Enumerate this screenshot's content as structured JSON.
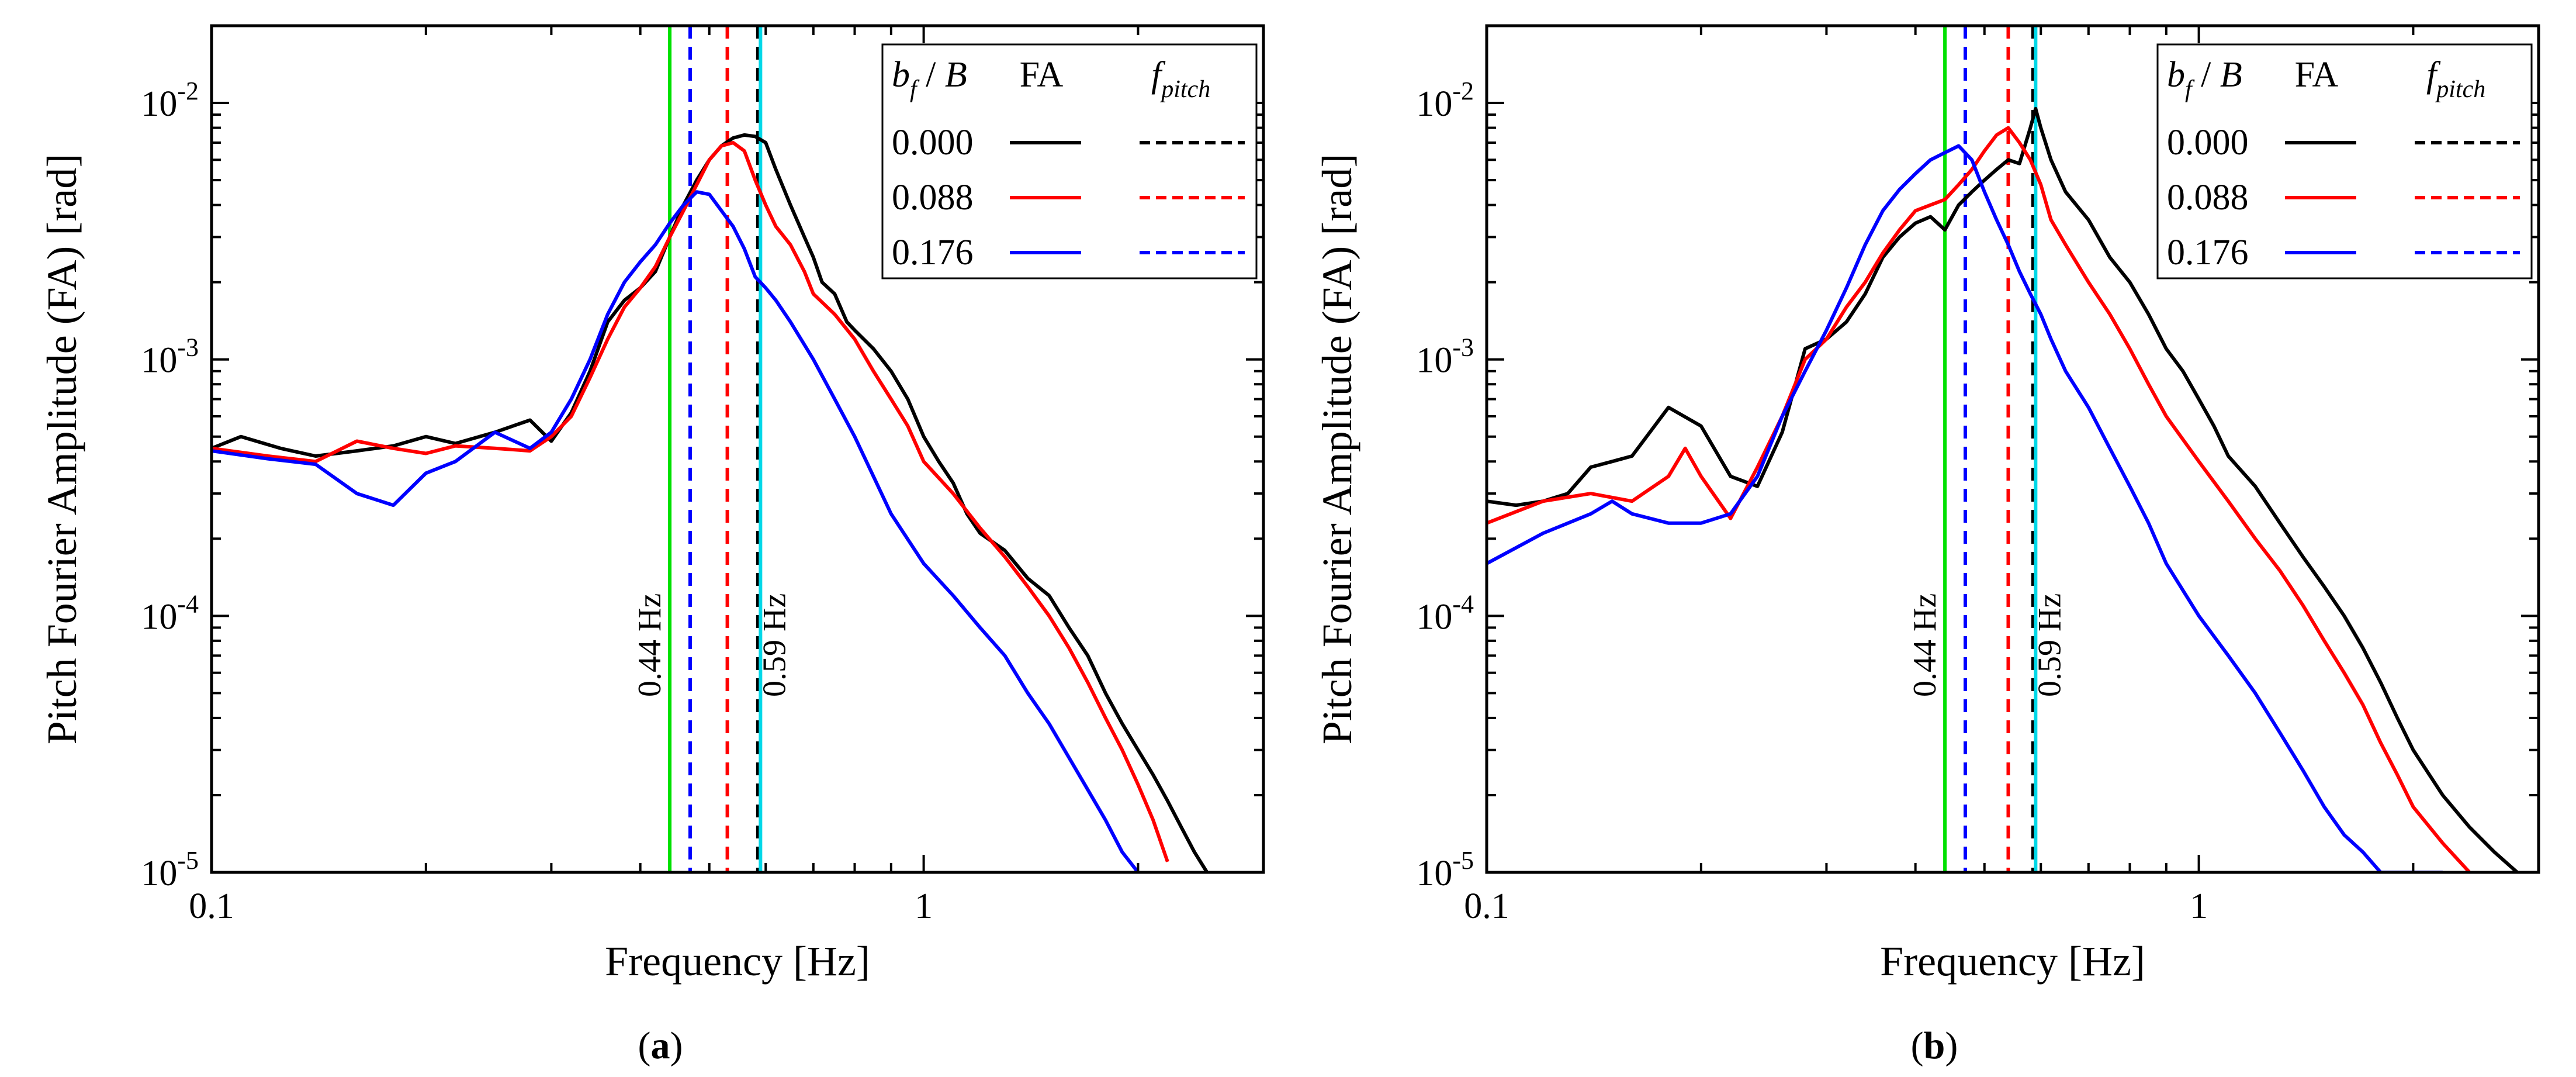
{
  "colors": {
    "black": "#000000",
    "red": "#ff0000",
    "blue": "#0000ff",
    "green": "#00e000",
    "cyan": "#00d8e8"
  },
  "chart_data": [
    {
      "type": "line",
      "panel": "a",
      "caption": "(a)",
      "xlabel": "Frequency [Hz]",
      "ylabel": "Pitch Fourier Amplitude (FA) [rad]",
      "xscale": "log",
      "yscale": "log",
      "xlim": [
        0.1,
        3.0
      ],
      "ylim": [
        1e-05,
        0.02
      ],
      "xticks": [
        "0.1",
        "1"
      ],
      "yticks": [
        "10-5",
        "10-4",
        "10-3",
        "10-2"
      ],
      "legend_placement": "top-right",
      "legend_headers": [
        "bf / B",
        "FA",
        "fpitch"
      ],
      "vlines": [
        {
          "x": 0.44,
          "color": "green",
          "style": "solid",
          "label": "0.44 Hz"
        },
        {
          "x": 0.47,
          "color": "blue",
          "style": "dashed"
        },
        {
          "x": 0.53,
          "color": "red",
          "style": "dashed"
        },
        {
          "x": 0.585,
          "color": "black",
          "style": "dashed"
        },
        {
          "x": 0.59,
          "color": "cyan",
          "style": "solid",
          "label": "0.59 Hz"
        }
      ],
      "series": [
        {
          "name": "0.000",
          "color": "black",
          "x": [
            0.1,
            0.11,
            0.125,
            0.14,
            0.16,
            0.18,
            0.2,
            0.22,
            0.25,
            0.28,
            0.3,
            0.32,
            0.34,
            0.36,
            0.38,
            0.4,
            0.42,
            0.44,
            0.46,
            0.48,
            0.5,
            0.52,
            0.54,
            0.56,
            0.58,
            0.6,
            0.62,
            0.65,
            0.68,
            0.7,
            0.72,
            0.75,
            0.78,
            0.8,
            0.85,
            0.9,
            0.95,
            1.0,
            1.05,
            1.1,
            1.15,
            1.2,
            1.3,
            1.4,
            1.5,
            1.6,
            1.7,
            1.8,
            1.9,
            2.0,
            2.1,
            2.2,
            2.3,
            2.4,
            2.5
          ],
          "y": [
            0.00045,
            0.0005,
            0.00045,
            0.00042,
            0.00044,
            0.00046,
            0.0005,
            0.00047,
            0.00052,
            0.00058,
            0.00048,
            0.00062,
            0.0009,
            0.0014,
            0.0017,
            0.0019,
            0.0022,
            0.003,
            0.004,
            0.005,
            0.006,
            0.0068,
            0.0073,
            0.0075,
            0.0074,
            0.007,
            0.0055,
            0.004,
            0.003,
            0.0025,
            0.002,
            0.0018,
            0.0014,
            0.0013,
            0.0011,
            0.0009,
            0.0007,
            0.0005,
            0.0004,
            0.00033,
            0.00025,
            0.00021,
            0.00018,
            0.00014,
            0.00012,
            9e-05,
            7e-05,
            5e-05,
            3.8e-05,
            3e-05,
            2.4e-05,
            1.9e-05,
            1.5e-05,
            1.2e-05,
            1e-05
          ]
        },
        {
          "name": "0.088",
          "color": "red",
          "x": [
            0.1,
            0.12,
            0.14,
            0.16,
            0.18,
            0.2,
            0.22,
            0.25,
            0.28,
            0.3,
            0.32,
            0.34,
            0.36,
            0.38,
            0.4,
            0.42,
            0.44,
            0.46,
            0.48,
            0.5,
            0.52,
            0.54,
            0.56,
            0.58,
            0.6,
            0.62,
            0.65,
            0.68,
            0.7,
            0.75,
            0.8,
            0.85,
            0.9,
            0.95,
            1.0,
            1.1,
            1.2,
            1.3,
            1.4,
            1.5,
            1.6,
            1.7,
            1.8,
            1.9,
            2.0,
            2.1,
            2.2
          ],
          "y": [
            0.00045,
            0.00042,
            0.0004,
            0.00048,
            0.00045,
            0.00043,
            0.00046,
            0.00045,
            0.00044,
            0.0005,
            0.0006,
            0.00085,
            0.0012,
            0.0016,
            0.0019,
            0.0023,
            0.003,
            0.0038,
            0.0048,
            0.006,
            0.0068,
            0.007,
            0.0065,
            0.005,
            0.004,
            0.0033,
            0.0028,
            0.0022,
            0.0018,
            0.0015,
            0.0012,
            0.0009,
            0.0007,
            0.00055,
            0.0004,
            0.0003,
            0.00022,
            0.00017,
            0.00013,
            0.0001,
            7.5e-05,
            5.5e-05,
            4e-05,
            3e-05,
            2.2e-05,
            1.6e-05,
            1.1e-05
          ]
        },
        {
          "name": "0.176",
          "color": "blue",
          "x": [
            0.1,
            0.12,
            0.14,
            0.16,
            0.18,
            0.2,
            0.22,
            0.25,
            0.28,
            0.3,
            0.32,
            0.34,
            0.36,
            0.38,
            0.4,
            0.42,
            0.44,
            0.46,
            0.48,
            0.5,
            0.52,
            0.54,
            0.56,
            0.58,
            0.6,
            0.62,
            0.65,
            0.7,
            0.75,
            0.8,
            0.85,
            0.9,
            1.0,
            1.1,
            1.2,
            1.3,
            1.4,
            1.5,
            1.6,
            1.7,
            1.8,
            1.9,
            2.0
          ],
          "y": [
            0.00044,
            0.00041,
            0.00039,
            0.0003,
            0.00027,
            0.00036,
            0.0004,
            0.00052,
            0.00045,
            0.00052,
            0.0007,
            0.001,
            0.0015,
            0.002,
            0.0024,
            0.0028,
            0.0034,
            0.004,
            0.0045,
            0.0044,
            0.0038,
            0.0033,
            0.0027,
            0.0021,
            0.0019,
            0.0017,
            0.0014,
            0.001,
            0.0007,
            0.0005,
            0.00035,
            0.00025,
            0.00016,
            0.00012,
            9e-05,
            7e-05,
            5e-05,
            3.8e-05,
            2.8e-05,
            2.1e-05,
            1.6e-05,
            1.2e-05,
            1e-05
          ]
        }
      ]
    },
    {
      "type": "line",
      "panel": "b",
      "caption": "(b)",
      "xlabel": "Frequency [Hz]",
      "ylabel": "Pitch Fourier Amplitude (FA) [rad]",
      "xscale": "log",
      "yscale": "log",
      "xlim": [
        0.1,
        3.0
      ],
      "ylim": [
        1e-05,
        0.02
      ],
      "xticks": [
        "0.1",
        "1"
      ],
      "yticks": [
        "10-5",
        "10-4",
        "10-3",
        "10-2"
      ],
      "legend_placement": "top-right",
      "legend_headers": [
        "bf / B",
        "FA",
        "fpitch"
      ],
      "vlines": [
        {
          "x": 0.44,
          "color": "green",
          "style": "solid",
          "label": "0.44 Hz"
        },
        {
          "x": 0.47,
          "color": "blue",
          "style": "dashed"
        },
        {
          "x": 0.54,
          "color": "red",
          "style": "dashed"
        },
        {
          "x": 0.585,
          "color": "black",
          "style": "dashed"
        },
        {
          "x": 0.59,
          "color": "cyan",
          "style": "solid",
          "label": "0.59 Hz"
        }
      ],
      "series": [
        {
          "name": "0.000",
          "color": "black",
          "x": [
            0.1,
            0.11,
            0.12,
            0.13,
            0.14,
            0.15,
            0.16,
            0.18,
            0.2,
            0.22,
            0.24,
            0.26,
            0.28,
            0.3,
            0.32,
            0.34,
            0.36,
            0.38,
            0.4,
            0.42,
            0.44,
            0.46,
            0.48,
            0.5,
            0.52,
            0.54,
            0.56,
            0.58,
            0.59,
            0.6,
            0.62,
            0.65,
            0.7,
            0.75,
            0.8,
            0.85,
            0.9,
            0.95,
            1.0,
            1.05,
            1.1,
            1.2,
            1.3,
            1.4,
            1.5,
            1.6,
            1.7,
            1.8,
            1.9,
            2.0,
            2.2,
            2.4,
            2.6,
            2.8
          ],
          "y": [
            0.00028,
            0.00027,
            0.00028,
            0.0003,
            0.00038,
            0.0004,
            0.00042,
            0.00065,
            0.00055,
            0.00035,
            0.00032,
            0.00052,
            0.0011,
            0.0012,
            0.0014,
            0.0018,
            0.0025,
            0.003,
            0.0034,
            0.0036,
            0.0032,
            0.004,
            0.0045,
            0.005,
            0.0055,
            0.006,
            0.0058,
            0.008,
            0.0095,
            0.008,
            0.006,
            0.0045,
            0.0035,
            0.0025,
            0.002,
            0.0015,
            0.0011,
            0.0009,
            0.0007,
            0.00055,
            0.00042,
            0.00032,
            0.00023,
            0.00017,
            0.00013,
            0.0001,
            7.5e-05,
            5.5e-05,
            4e-05,
            3e-05,
            2e-05,
            1.5e-05,
            1.2e-05,
            1e-05
          ]
        },
        {
          "name": "0.088",
          "color": "red",
          "x": [
            0.1,
            0.12,
            0.14,
            0.16,
            0.18,
            0.19,
            0.2,
            0.22,
            0.24,
            0.26,
            0.28,
            0.3,
            0.32,
            0.34,
            0.36,
            0.38,
            0.4,
            0.42,
            0.44,
            0.46,
            0.48,
            0.5,
            0.52,
            0.54,
            0.56,
            0.58,
            0.6,
            0.62,
            0.65,
            0.7,
            0.75,
            0.8,
            0.85,
            0.9,
            1.0,
            1.1,
            1.2,
            1.3,
            1.4,
            1.5,
            1.6,
            1.7,
            1.8,
            1.9,
            2.0,
            2.2,
            2.4
          ],
          "y": [
            0.00023,
            0.00028,
            0.0003,
            0.00028,
            0.00035,
            0.00045,
            0.00035,
            0.00024,
            0.00038,
            0.0006,
            0.001,
            0.0012,
            0.0016,
            0.002,
            0.0026,
            0.0032,
            0.0038,
            0.004,
            0.0042,
            0.0048,
            0.0055,
            0.0065,
            0.0075,
            0.008,
            0.007,
            0.006,
            0.0048,
            0.0035,
            0.0028,
            0.002,
            0.0015,
            0.0011,
            0.0008,
            0.0006,
            0.0004,
            0.00028,
            0.0002,
            0.00015,
            0.00011,
            8e-05,
            6e-05,
            4.5e-05,
            3.2e-05,
            2.4e-05,
            1.8e-05,
            1.3e-05,
            1e-05
          ]
        },
        {
          "name": "0.176",
          "color": "blue",
          "x": [
            0.1,
            0.12,
            0.14,
            0.15,
            0.16,
            0.18,
            0.2,
            0.22,
            0.24,
            0.26,
            0.28,
            0.3,
            0.32,
            0.34,
            0.36,
            0.38,
            0.4,
            0.42,
            0.44,
            0.46,
            0.48,
            0.5,
            0.52,
            0.54,
            0.56,
            0.58,
            0.6,
            0.62,
            0.65,
            0.7,
            0.75,
            0.8,
            0.85,
            0.9,
            1.0,
            1.1,
            1.2,
            1.3,
            1.4,
            1.5,
            1.6,
            1.7,
            1.8,
            1.9,
            2.0,
            2.2
          ],
          "y": [
            0.00016,
            0.00021,
            0.00025,
            0.00028,
            0.00025,
            0.00023,
            0.00023,
            0.00025,
            0.00035,
            0.0006,
            0.0009,
            0.0013,
            0.0019,
            0.0028,
            0.0038,
            0.0046,
            0.0053,
            0.006,
            0.0064,
            0.0068,
            0.006,
            0.0045,
            0.0035,
            0.0028,
            0.0022,
            0.0018,
            0.0015,
            0.0012,
            0.0009,
            0.00065,
            0.00045,
            0.00032,
            0.00023,
            0.00016,
            0.0001,
            7e-05,
            5e-05,
            3.5e-05,
            2.5e-05,
            1.8e-05,
            1.4e-05,
            1.2e-05,
            1e-05,
            1e-05,
            1e-05,
            1e-05
          ]
        }
      ]
    }
  ]
}
